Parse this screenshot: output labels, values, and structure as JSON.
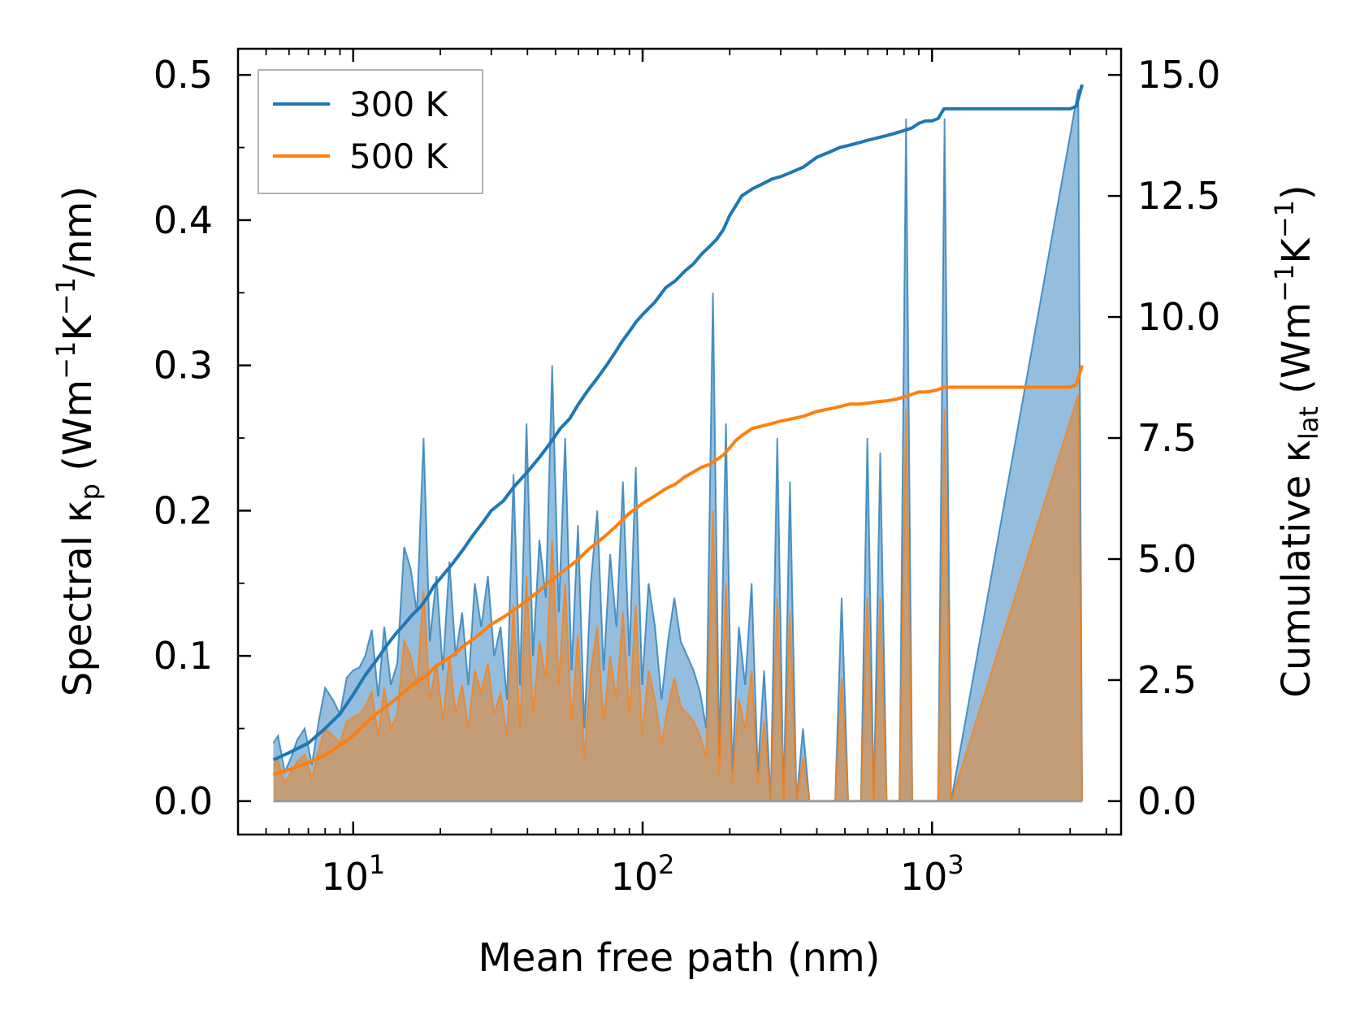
{
  "chart_data": {
    "type": "area",
    "title": "",
    "xlabel": "Mean free path (nm)",
    "xscale": "log",
    "xlim": [
      4.0,
      4500
    ],
    "x_ticks": [
      {
        "value": 10,
        "base": "10",
        "exp": "1"
      },
      {
        "value": 100,
        "base": "10",
        "exp": "2"
      },
      {
        "value": 1000,
        "base": "10",
        "exp": "3"
      }
    ],
    "ylabel_left": {
      "prefix": "Spectral κ",
      "sub": "p",
      "unit_a": " (Wm",
      "exp_a": "−1",
      "unit_b": "K",
      "exp_b": "−1",
      "unit_c": "/nm)"
    },
    "ylabel_right": {
      "prefix": "Cumulative κ",
      "sub": "lat",
      "unit_a": " (Wm",
      "exp_a": "−1",
      "unit_b": "K",
      "exp_b": "−1",
      "unit_c": ")"
    },
    "ylim_left": [
      -0.023,
      0.518
    ],
    "ylim_right": [
      -0.69,
      15.54
    ],
    "yticks_left": [
      "0.0",
      "0.1",
      "0.2",
      "0.3",
      "0.4",
      "0.5"
    ],
    "yticks_right": [
      "0.0",
      "2.5",
      "5.0",
      "7.5",
      "10.0",
      "12.5",
      "15.0"
    ],
    "legend": {
      "position": "top-left",
      "entries": [
        "300 K",
        "500 K"
      ]
    },
    "colors": {
      "s300": "#1f77b4",
      "s500": "#ff7f0e",
      "fill300": "#8fb9dc",
      "fill500": "#c69a6e"
    },
    "series": [
      {
        "name": "300 K",
        "spectral": {
          "x": [
            5.3,
            5.5,
            5.8,
            6.1,
            6.4,
            6.8,
            7.2,
            7.6,
            8.0,
            8.5,
            9.0,
            9.5,
            10.0,
            10.5,
            11.0,
            11.6,
            12.2,
            12.8,
            13.5,
            14.2,
            15.0,
            15.8,
            16.6,
            17.5,
            18.4,
            19.4,
            20.4,
            21.5,
            22.6,
            23.8,
            25.0,
            26.3,
            27.7,
            29.2,
            30.7,
            32.3,
            34.0,
            35.8,
            37.7,
            39.7,
            41.8,
            44.0,
            46.3,
            48.7,
            51.3,
            54.0,
            56.8,
            59.8,
            62.9,
            66.2,
            69.7,
            73.3,
            77.2,
            81.2,
            85.5,
            90.0,
            94.7,
            99.6,
            104.9,
            110.4,
            116.2,
            122.3,
            128.7,
            135.5,
            142.6,
            150,
            158,
            166,
            175,
            184,
            194,
            204,
            215,
            226,
            238,
            250,
            263,
            277,
            292,
            307,
            323,
            340,
            358,
            377,
            397,
            418,
            440,
            463,
            487,
            513,
            540,
            568,
            598,
            629,
            662,
            697,
            734,
            772,
            813,
            855,
            900,
            948,
            997,
            1050,
            1105,
            1163,
            3200,
            3300
          ],
          "y": [
            0.04,
            0.045,
            0.02,
            0.03,
            0.042,
            0.05,
            0.025,
            0.055,
            0.078,
            0.07,
            0.06,
            0.085,
            0.09,
            0.092,
            0.1,
            0.118,
            0.072,
            0.12,
            0.08,
            0.095,
            0.175,
            0.16,
            0.13,
            0.25,
            0.11,
            0.155,
            0.09,
            0.165,
            0.1,
            0.13,
            0.08,
            0.15,
            0.12,
            0.155,
            0.1,
            0.12,
            0.07,
            0.225,
            0.08,
            0.26,
            0.1,
            0.18,
            0.14,
            0.3,
            0.13,
            0.25,
            0.09,
            0.19,
            0.05,
            0.15,
            0.2,
            0.09,
            0.17,
            0.12,
            0.22,
            0.1,
            0.23,
            0.08,
            0.15,
            0.12,
            0.07,
            0.11,
            0.14,
            0.11,
            0.1,
            0.09,
            0.075,
            0.05,
            0.35,
            0.03,
            0.26,
            0.02,
            0.12,
            0.08,
            0.15,
            0.02,
            0.09,
            0.0,
            0.25,
            0.0,
            0.22,
            0.0,
            0.05,
            0.0,
            0.0,
            0.0,
            0.0,
            0.0,
            0.14,
            0.0,
            0.0,
            0.0,
            0.25,
            0.0,
            0.24,
            0.0,
            0.0,
            0.0,
            0.47,
            0.0,
            0.0,
            0.0,
            0.0,
            0.0,
            0.47,
            0.0,
            0.49,
            0.0
          ]
        },
        "cumulative": {
          "x": [
            5.3,
            6,
            7,
            8,
            9,
            10,
            11,
            12,
            13,
            14,
            15,
            16,
            17,
            18,
            19,
            20,
            22,
            24,
            26,
            28,
            30,
            33,
            36,
            40,
            44,
            48,
            52,
            56,
            60,
            65,
            70,
            75,
            80,
            85,
            90,
            95,
            100,
            110,
            120,
            130,
            140,
            150,
            160,
            170,
            180,
            190,
            200,
            210,
            220,
            240,
            260,
            280,
            300,
            330,
            360,
            400,
            440,
            480,
            520,
            560,
            600,
            650,
            700,
            750,
            800,
            850,
            900,
            950,
            1000,
            1050,
            1100,
            1200,
            1500,
            2000,
            2500,
            3000,
            3150,
            3300
          ],
          "y": [
            0.85,
            1.0,
            1.2,
            1.5,
            1.8,
            2.2,
            2.6,
            2.9,
            3.2,
            3.45,
            3.65,
            3.85,
            4.0,
            4.2,
            4.45,
            4.6,
            4.9,
            5.2,
            5.5,
            5.75,
            6.0,
            6.2,
            6.5,
            6.8,
            7.1,
            7.4,
            7.7,
            7.9,
            8.2,
            8.5,
            8.75,
            9.0,
            9.25,
            9.5,
            9.7,
            9.9,
            10.05,
            10.3,
            10.6,
            10.75,
            10.95,
            11.1,
            11.3,
            11.45,
            11.6,
            11.8,
            12.1,
            12.3,
            12.5,
            12.65,
            12.75,
            12.85,
            12.9,
            13.0,
            13.1,
            13.3,
            13.4,
            13.5,
            13.55,
            13.6,
            13.65,
            13.7,
            13.75,
            13.8,
            13.85,
            13.9,
            14.0,
            14.05,
            14.05,
            14.1,
            14.3,
            14.3,
            14.3,
            14.3,
            14.3,
            14.3,
            14.35,
            14.8
          ]
        }
      },
      {
        "name": "500 K",
        "spectral": {
          "x": [
            5.3,
            5.5,
            5.8,
            6.1,
            6.4,
            6.8,
            7.2,
            7.6,
            8.0,
            8.5,
            9.0,
            9.5,
            10.0,
            10.5,
            11.0,
            11.6,
            12.2,
            12.8,
            13.5,
            14.2,
            15.0,
            15.8,
            16.6,
            17.5,
            18.4,
            19.4,
            20.4,
            21.5,
            22.6,
            23.8,
            25.0,
            26.3,
            27.7,
            29.2,
            30.7,
            32.3,
            34.0,
            35.8,
            37.7,
            39.7,
            41.8,
            44.0,
            46.3,
            48.7,
            51.3,
            54.0,
            56.8,
            59.8,
            62.9,
            66.2,
            69.7,
            73.3,
            77.2,
            81.2,
            85.5,
            90.0,
            94.7,
            99.6,
            104.9,
            110.4,
            116.2,
            122.3,
            128.7,
            135.5,
            142.6,
            150,
            158,
            166,
            175,
            184,
            194,
            204,
            215,
            226,
            238,
            250,
            263,
            277,
            292,
            307,
            323,
            340,
            358,
            377,
            397,
            418,
            440,
            463,
            487,
            513,
            540,
            568,
            598,
            629,
            662,
            697,
            734,
            772,
            813,
            855,
            900,
            948,
            997,
            1050,
            1105,
            1163,
            3200,
            3300
          ],
          "y": [
            0.025,
            0.028,
            0.012,
            0.02,
            0.027,
            0.032,
            0.016,
            0.035,
            0.05,
            0.045,
            0.04,
            0.055,
            0.058,
            0.06,
            0.065,
            0.075,
            0.045,
            0.078,
            0.05,
            0.06,
            0.11,
            0.1,
            0.08,
            0.145,
            0.07,
            0.095,
            0.055,
            0.1,
            0.06,
            0.08,
            0.05,
            0.09,
            0.075,
            0.095,
            0.06,
            0.075,
            0.045,
            0.135,
            0.05,
            0.155,
            0.06,
            0.11,
            0.085,
            0.18,
            0.08,
            0.15,
            0.055,
            0.115,
            0.03,
            0.09,
            0.12,
            0.055,
            0.1,
            0.07,
            0.13,
            0.06,
            0.135,
            0.045,
            0.09,
            0.07,
            0.04,
            0.065,
            0.085,
            0.065,
            0.06,
            0.055,
            0.045,
            0.03,
            0.2,
            0.018,
            0.15,
            0.012,
            0.07,
            0.05,
            0.09,
            0.012,
            0.055,
            0.0,
            0.14,
            0.0,
            0.13,
            0.0,
            0.03,
            0.0,
            0.0,
            0.0,
            0.0,
            0.0,
            0.085,
            0.0,
            0.0,
            0.0,
            0.14,
            0.0,
            0.14,
            0.0,
            0.0,
            0.0,
            0.27,
            0.0,
            0.0,
            0.0,
            0.0,
            0.0,
            0.27,
            0.0,
            0.28,
            0.0
          ]
        },
        "cumulative": {
          "x": [
            5.3,
            6,
            7,
            8,
            9,
            10,
            11,
            12,
            13,
            14,
            15,
            16,
            17,
            18,
            19,
            20,
            22,
            24,
            26,
            28,
            30,
            33,
            36,
            40,
            44,
            48,
            52,
            56,
            60,
            65,
            70,
            75,
            80,
            85,
            90,
            95,
            100,
            110,
            120,
            130,
            140,
            150,
            160,
            170,
            180,
            190,
            200,
            210,
            220,
            240,
            260,
            280,
            300,
            330,
            360,
            400,
            440,
            480,
            520,
            560,
            600,
            650,
            700,
            750,
            800,
            850,
            900,
            950,
            1000,
            1050,
            1100,
            1200,
            1500,
            2000,
            2500,
            3000,
            3150,
            3300
          ],
          "y": [
            0.55,
            0.65,
            0.8,
            0.95,
            1.15,
            1.35,
            1.6,
            1.8,
            1.95,
            2.1,
            2.25,
            2.4,
            2.5,
            2.6,
            2.75,
            2.85,
            3.0,
            3.2,
            3.35,
            3.5,
            3.65,
            3.8,
            3.95,
            4.15,
            4.35,
            4.55,
            4.7,
            4.85,
            5.0,
            5.2,
            5.35,
            5.5,
            5.65,
            5.8,
            5.95,
            6.05,
            6.15,
            6.3,
            6.45,
            6.55,
            6.7,
            6.8,
            6.9,
            6.95,
            7.05,
            7.15,
            7.3,
            7.45,
            7.55,
            7.7,
            7.75,
            7.8,
            7.85,
            7.9,
            7.95,
            8.05,
            8.1,
            8.15,
            8.2,
            8.2,
            8.22,
            8.25,
            8.27,
            8.3,
            8.35,
            8.4,
            8.45,
            8.45,
            8.47,
            8.5,
            8.55,
            8.55,
            8.55,
            8.55,
            8.55,
            8.55,
            8.6,
            9.0
          ]
        }
      }
    ]
  }
}
